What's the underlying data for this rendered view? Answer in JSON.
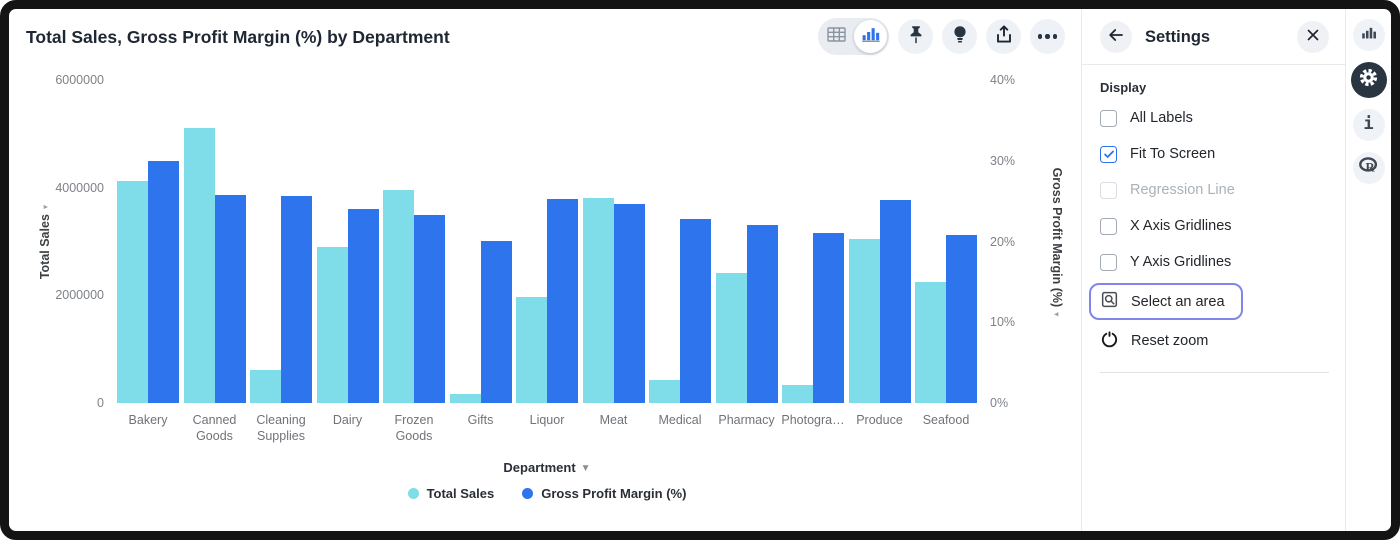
{
  "colors": {
    "sales_cyan": "#7EDDE8",
    "gpm_blue": "#2E74EC",
    "check_blue": "#2F73EC",
    "focus_outline": "#8286EB"
  },
  "chart_data": {
    "type": "bar",
    "title": "Total Sales, Gross Profit Margin (%) by Department",
    "categories": [
      "Bakery",
      "Canned Goods",
      "Cleaning Supplies",
      "Dairy",
      "Frozen Goods",
      "Gifts",
      "Liquor",
      "Meat",
      "Medical",
      "Pharmacy",
      "Photogra…",
      "Produce",
      "Seafood"
    ],
    "series": [
      {
        "name": "Total Sales",
        "axis": "left",
        "color": "#7EDDE8",
        "values": [
          4120000,
          5110000,
          610000,
          2900000,
          3960000,
          170000,
          1970000,
          3810000,
          430000,
          2410000,
          330000,
          3050000,
          2250000
        ]
      },
      {
        "name": "Gross Profit Margin (%)",
        "axis": "right",
        "color": "#2E74EC",
        "values": [
          30,
          25.8,
          25.6,
          24,
          23.3,
          20.1,
          25.3,
          24.6,
          22.8,
          22,
          21.1,
          25.1,
          20.8
        ]
      }
    ],
    "left_axis": {
      "label": "Total Sales",
      "max": 6000000,
      "ticks": [
        "0",
        "2000000",
        "4000000",
        "6000000"
      ]
    },
    "right_axis": {
      "label": "Gross Profit Margin (%)",
      "max": 40,
      "ticks": [
        "0%",
        "10%",
        "20%",
        "30%",
        "40%"
      ]
    },
    "xlabel": "Department",
    "gridlines": false,
    "legend_position": "bottom"
  },
  "toolbar": {
    "icons": [
      "table-view-toggle",
      "chart-view-toggle",
      "pin-icon",
      "lightbulb-icon",
      "share-icon",
      "more-icon"
    ],
    "active_view": "chart"
  },
  "settings": {
    "title": "Settings",
    "section": "Display",
    "checkboxes": [
      {
        "label": "All Labels",
        "checked": false,
        "disabled": false
      },
      {
        "label": "Fit To Screen",
        "checked": true,
        "disabled": false
      },
      {
        "label": "Regression Line",
        "checked": false,
        "disabled": true
      },
      {
        "label": "X Axis Gridlines",
        "checked": false,
        "disabled": false
      },
      {
        "label": "Y Axis Gridlines",
        "checked": false,
        "disabled": false
      }
    ],
    "actions": [
      {
        "label": "Select an area",
        "icon": "select-area-icon",
        "focused": true
      },
      {
        "label": "Reset zoom",
        "icon": "reset-zoom-icon",
        "focused": false
      }
    ]
  },
  "rail": {
    "items": [
      {
        "icon": "bar-chart-icon",
        "active": false
      },
      {
        "icon": "gear-icon",
        "active": true
      },
      {
        "icon": "info-icon",
        "active": false
      },
      {
        "icon": "r-logo-icon",
        "active": false
      }
    ]
  }
}
